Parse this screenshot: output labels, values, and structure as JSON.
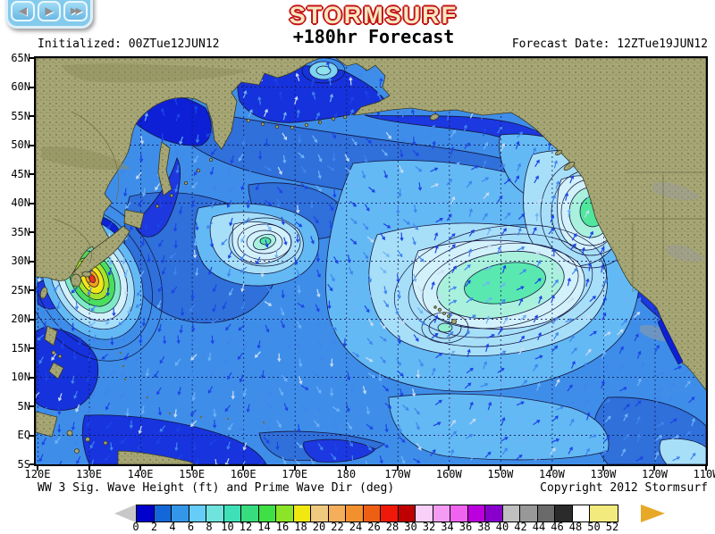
{
  "nav": {
    "prev_glyph": "◀",
    "next_glyph": "▶",
    "last_glyph": "▶▶"
  },
  "header": {
    "brand": "STORMSURF",
    "title": "+180hr Forecast",
    "initialized": "Initialized: 00ZTue12JUN12",
    "forecast_date": "Forecast Date: 12ZTue19JUN12"
  },
  "map": {
    "lat_labels": [
      "65N",
      "60N",
      "55N",
      "50N",
      "45N",
      "40N",
      "35N",
      "30N",
      "25N",
      "20N",
      "15N",
      "10N",
      "5N",
      "EQ",
      "5S"
    ],
    "lon_labels": [
      "120E",
      "130E",
      "140E",
      "150E",
      "160E",
      "170E",
      "180",
      "170W",
      "160W",
      "150W",
      "140W",
      "130W",
      "120W",
      "110W"
    ],
    "depicted_maxima": [
      {
        "location": "typhoon south of Japan",
        "approx_position": "26N 129E",
        "peak_ft": 26
      },
      {
        "location": "NE Pacific off California",
        "approx_position": "39N 129W",
        "peak_ft": 15
      },
      {
        "location": "central Pacific NE of Hawaii",
        "approx_position": "27N 151W",
        "peak_ft": 14
      },
      {
        "location": "NW Pacific",
        "approx_position": "36N 166E",
        "peak_ft": 13
      }
    ]
  },
  "footer": {
    "caption": "WW 3 Sig. Wave Height (ft) and Prime Wave Dir (deg)",
    "copyright": "Copyright 2012 Stormsurf"
  },
  "legend": {
    "units": "ft",
    "tick_labels": [
      "0",
      "2",
      "4",
      "6",
      "8",
      "10",
      "12",
      "14",
      "16",
      "18",
      "20",
      "22",
      "24",
      "26",
      "28",
      "30",
      "32",
      "34",
      "36",
      "38",
      "40",
      "42",
      "44",
      "46",
      "48",
      "50",
      "52"
    ],
    "cell_colors": [
      "#0000CC",
      "#1467D8",
      "#3496E8",
      "#66CCF8",
      "#6FE4DC",
      "#3FE0B8",
      "#37DC7E",
      "#3FE045",
      "#8CE428",
      "#F0E810",
      "#EFC97E",
      "#F4AE5C",
      "#F2902E",
      "#EE5F14",
      "#F01808",
      "#BE0000",
      "#F8D0F8",
      "#F49CF4",
      "#EF63EF",
      "#BB00DD",
      "#8800CC",
      "#BFBFBF",
      "#989898",
      "#6A6A6A",
      "#2B2B2B",
      "#FFFFFF"
    ],
    "overflow_color": "#F2EA7C",
    "left_arrow_color": "#C8C8C8",
    "right_arrow_color": "#E8A828"
  }
}
